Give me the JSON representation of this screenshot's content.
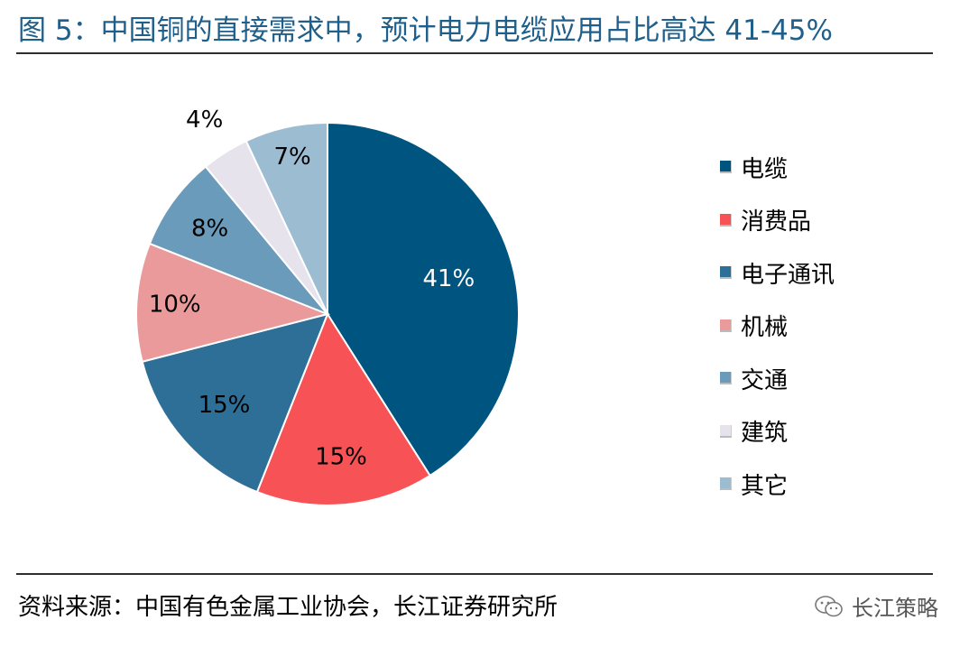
{
  "title": "图 5：中国铜的直接需求中，预计电力电缆应用占比高达 41-45%",
  "source": "资料来源：中国有色金属工业协会，长江证券研究所",
  "watermark": "长江策略",
  "chart_data": {
    "type": "pie",
    "labels": [
      "电缆",
      "消费品",
      "电子通讯",
      "机械",
      "交通",
      "建筑",
      "其它"
    ],
    "values": [
      41,
      15,
      15,
      10,
      8,
      4,
      7
    ],
    "value_labels": [
      "41%",
      "15%",
      "15%",
      "10%",
      "8%",
      "4%",
      "7%"
    ],
    "colors": [
      "#005580",
      "#f75356",
      "#2e6f97",
      "#ea9a9b",
      "#6a9bba",
      "#e6e3ec",
      "#9bbcd1"
    ],
    "label_colors": [
      "#ffffff",
      "#000000",
      "#000000",
      "#000000",
      "#000000",
      "#000000",
      "#000000"
    ],
    "legend_position": "right",
    "start_angle_deg": 0,
    "direction": "clockwise"
  }
}
